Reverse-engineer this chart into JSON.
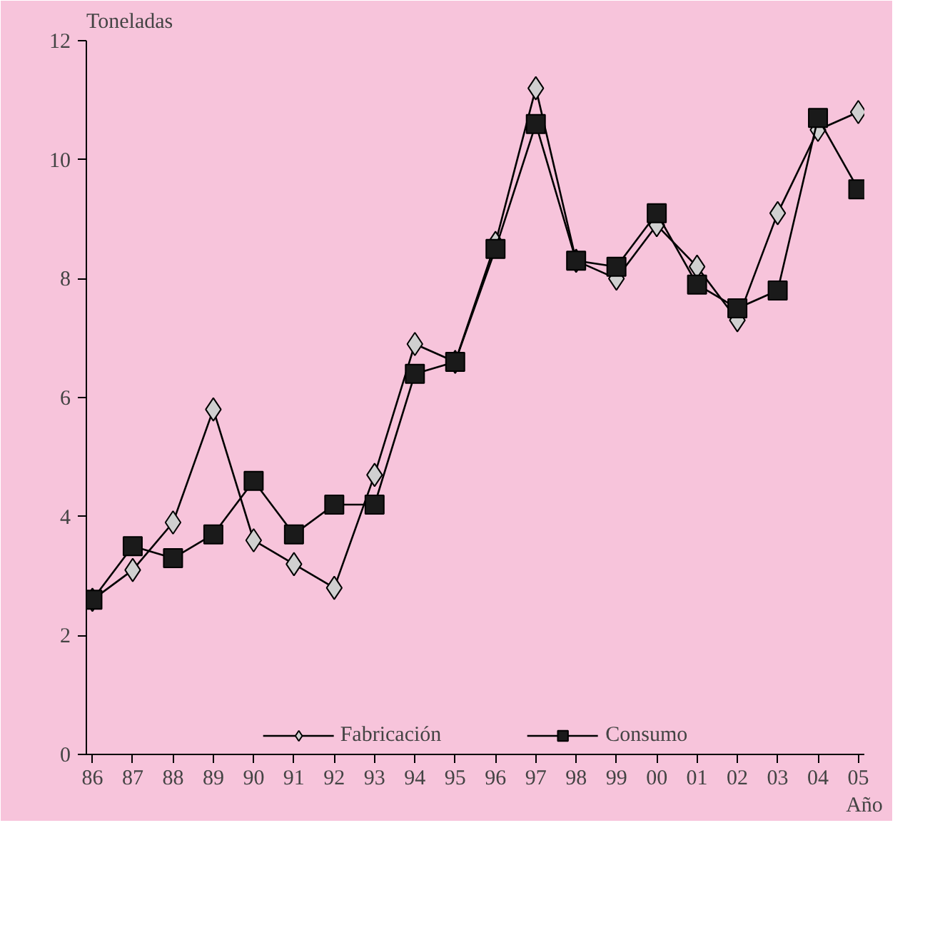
{
  "chart_data": {
    "type": "line",
    "ylabel": "Toneladas",
    "xlabel": "Año",
    "categories": [
      "86",
      "87",
      "88",
      "89",
      "90",
      "91",
      "92",
      "93",
      "94",
      "95",
      "96",
      "97",
      "98",
      "99",
      "00",
      "01",
      "02",
      "03",
      "04",
      "05"
    ],
    "series": [
      {
        "name": "Fabricación",
        "color": "#d0d0d0",
        "marker": "diamond",
        "values": [
          2.6,
          3.1,
          3.9,
          5.8,
          3.6,
          3.2,
          2.8,
          4.7,
          6.9,
          6.6,
          8.6,
          11.2,
          8.3,
          8.0,
          8.9,
          8.2,
          7.3,
          9.1,
          10.5,
          10.8
        ]
      },
      {
        "name": "Consumo",
        "color": "#1a1a1a",
        "marker": "square",
        "values": [
          2.6,
          3.5,
          3.3,
          3.7,
          4.6,
          3.7,
          4.2,
          4.2,
          6.4,
          6.6,
          8.5,
          10.6,
          8.3,
          8.2,
          9.1,
          7.9,
          7.5,
          7.8,
          10.7,
          9.5
        ]
      }
    ],
    "ylim": [
      0,
      12
    ],
    "yticks": [
      0,
      2,
      4,
      6,
      8,
      10,
      12
    ],
    "grid": false,
    "legend": "bottom"
  }
}
